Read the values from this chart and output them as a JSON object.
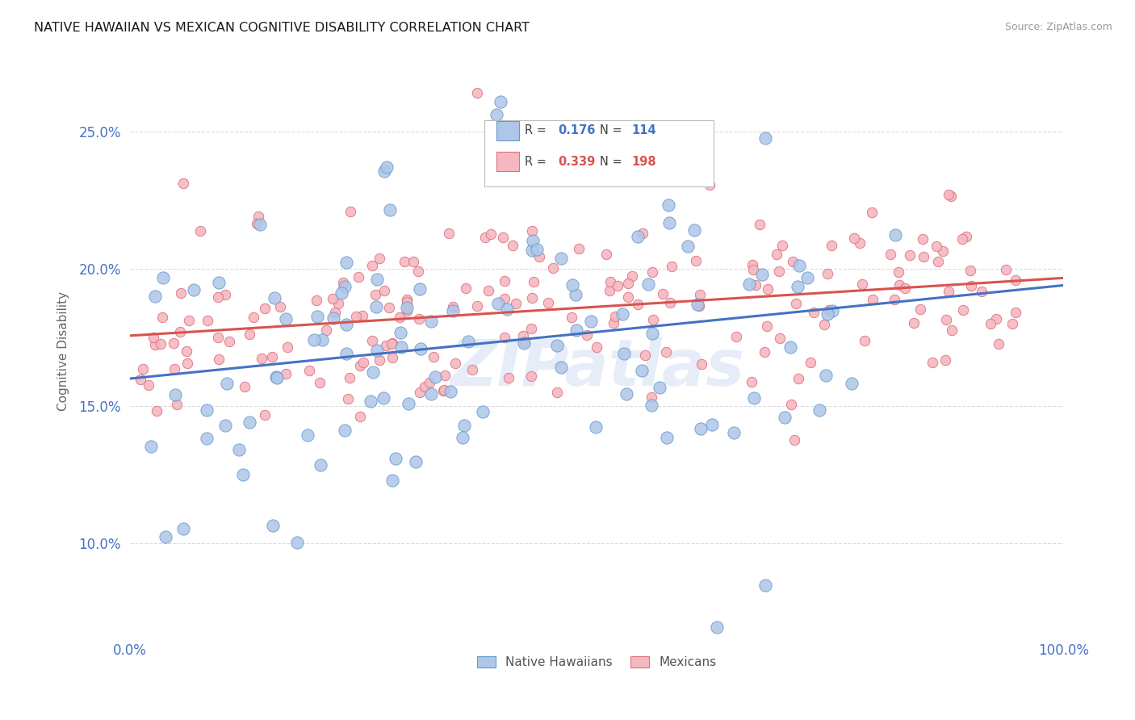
{
  "title": "NATIVE HAWAIIAN VS MEXICAN COGNITIVE DISABILITY CORRELATION CHART",
  "source": "Source: ZipAtlas.com",
  "ylabel": "Cognitive Disability",
  "xlim": [
    0.0,
    1.0
  ],
  "ylim": [
    0.065,
    0.275
  ],
  "yticks": [
    0.1,
    0.15,
    0.2,
    0.25
  ],
  "ytick_labels": [
    "10.0%",
    "15.0%",
    "20.0%",
    "25.0%"
  ],
  "xticks": [
    0.0,
    1.0
  ],
  "xtick_labels": [
    "0.0%",
    "100.0%"
  ],
  "nh_color": "#aec6e8",
  "nh_edge_color": "#6699cc",
  "mex_color": "#f5b8c0",
  "mex_edge_color": "#e07080",
  "nh_line_color": "#4472c4",
  "mex_line_color": "#d9534f",
  "R_nh": 0.176,
  "N_nh": 114,
  "R_mex": 0.339,
  "N_mex": 198,
  "background": "#ffffff",
  "grid_color": "#cccccc",
  "watermark": "ZIPatlas",
  "tick_color": "#4472c4",
  "dot_size_nh": 120,
  "dot_size_mex": 80
}
